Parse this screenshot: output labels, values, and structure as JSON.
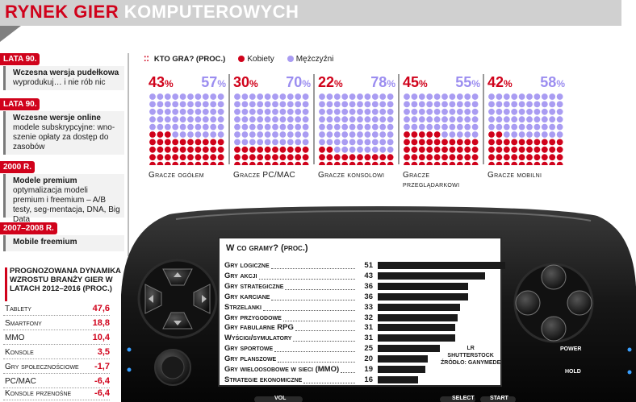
{
  "title": {
    "part1": "RYNEK GIER",
    "part2": "KOMPUTEROWYCH"
  },
  "timeline": [
    {
      "badge": "LATA 90.",
      "heading": "Wczesna wersja pudełkowa",
      "text": "wyprodukuj… i nie rób nic"
    },
    {
      "badge": "LATA 90.",
      "heading": "Wczesne wersje online",
      "text": "modele subskrypcyjne: wno-szenie opłaty za dostęp do zasobów"
    },
    {
      "badge": "2000 R.",
      "heading": "Modele premium",
      "text": "optymalizacja modeli premium i freemium – A/B testy, seg-mentacja, DNA, Big Data"
    },
    {
      "badge": "2007–2008 R.",
      "heading": "Mobile freemium",
      "text": ""
    }
  ],
  "growth": {
    "title": "Prognozowana dynamika wzrostu branży gier w latach 2012–2016 (proc.)",
    "rows": [
      {
        "label": "Tablety",
        "value": "47,6"
      },
      {
        "label": "Smartfony",
        "value": "18,8"
      },
      {
        "label": "MMO",
        "value": "10,4"
      },
      {
        "label": "Konsole",
        "value": "3,5"
      },
      {
        "label": "Gry społecznościowe",
        "value": "-1,7"
      },
      {
        "label": "PC/MAC",
        "value": "-6,4"
      },
      {
        "label": "Konsole przenośne",
        "value": "-6,4"
      }
    ]
  },
  "legend": {
    "title": "Kto gra? (proc.)",
    "female": "Kobiety",
    "male": "Mężczyźni"
  },
  "colors": {
    "female": "#d0021b",
    "male": "#a99cf2",
    "accent": "#d0021b"
  },
  "chart_data": [
    {
      "type": "waffle",
      "title": "Kto gra? (proc.)",
      "series_names": [
        "Kobiety",
        "Mężczyźni"
      ],
      "groups": [
        {
          "label": "Gracze ogółem",
          "female": 43,
          "male": 57
        },
        {
          "label": "Gracze PC/MAC",
          "female": 30,
          "male": 70
        },
        {
          "label": "Gracze konsolowi",
          "female": 22,
          "male": 78
        },
        {
          "label": "Gracze przeglądarkowi",
          "female": 45,
          "male": 55
        },
        {
          "label": "Gracze mobilni",
          "female": 42,
          "male": 58
        }
      ]
    },
    {
      "type": "bar",
      "title": "W co gramy? (proc.)",
      "categories": [
        "Gry logiczne",
        "Gry akcji",
        "Gry strategiczne",
        "Gry karciane",
        "Strzelanki",
        "Gry przygodowe",
        "Gry fabularne RPG",
        "Wyścigi/symulatory",
        "Gry sportowe",
        "Gry planszowe",
        "Gry wieloosobowe w sieci (MMO)",
        "Strategie ekonomiczne"
      ],
      "values": [
        51,
        43,
        36,
        36,
        33,
        32,
        31,
        31,
        25,
        20,
        19,
        16
      ],
      "xlim": [
        0,
        51
      ]
    }
  ],
  "source": {
    "line1": "LR",
    "line2": "SHUTTERSTOCK",
    "line3": "ŹRÓDŁO: GANYMEDE"
  },
  "console_labels": {
    "power": "POWER",
    "hold": "HOLD",
    "select": "SELECT",
    "start": "START",
    "vol": "VOL"
  }
}
